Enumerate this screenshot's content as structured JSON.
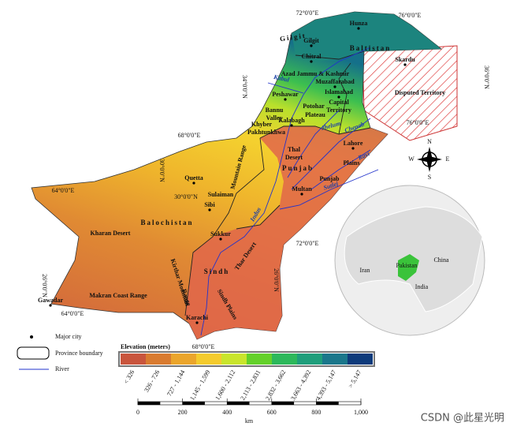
{
  "map": {
    "labels": [
      "Hunza",
      "Gilgit",
      "Gilgit",
      "Baltistan",
      "Chitral",
      "Skardu",
      "Azad Jammu & Kashmir",
      "Muzaffarabad",
      "Kabul",
      "Peshawar",
      "Islamabad",
      "Capital",
      "Territory",
      "Bannu",
      "Valley",
      "Potohar",
      "Plateau",
      "Kalabagh",
      "Khyber",
      "Pakhtunkhwa",
      "Jhelum",
      "Chenab",
      "Lahore",
      "Thal",
      "Desert",
      "Punjab",
      "Plains",
      "Ravi",
      "Punjab",
      "Sutlej",
      "Multan",
      "Quetta",
      "Sibi",
      "Sulaiman",
      "Mountain Range",
      "Balochistan",
      "Kharan Desert",
      "Sukkur",
      "Indus",
      "Thar Desert",
      "Sindh",
      "Kirthar Mountain",
      "Range",
      "Makran Coast Range",
      "Gawadar",
      "Karachi",
      "Sindh Plains",
      "Disputed Territory"
    ],
    "coordinates": [
      "72°0'0\"E",
      "76°0'0\"E",
      "36°0'0\"N",
      "34°0'0\"N",
      "76°0'0\"E",
      "68°0'0\"E",
      "30°0'0\"N",
      "64°0'0\"E",
      "30°0'0\"N",
      "72°0'0\"E",
      "26°0'0\"N",
      "26°0'0\"N",
      "64°0'0\"E",
      "68°0'0\"E"
    ],
    "compass": [
      "N",
      "S",
      "E",
      "W"
    ],
    "inset": [
      "China",
      "Iran",
      "Pakistan",
      "India"
    ]
  },
  "legend": {
    "items": [
      "Major city",
      "Province boundary",
      "River"
    ],
    "elevation_title": "Elevation (meters)",
    "classes": [
      {
        "label": "< 326",
        "color": "#c9553d"
      },
      {
        "label": "326 - 726",
        "color": "#d97b30"
      },
      {
        "label": "727 - 1,144",
        "color": "#eba52b"
      },
      {
        "label": "1,145 - 1,599",
        "color": "#f4cb2d"
      },
      {
        "label": "1,600 - 2,112",
        "color": "#c9e52c"
      },
      {
        "label": "2,113 - 2,831",
        "color": "#64d12a"
      },
      {
        "label": "2,832 - 3,662",
        "color": "#2db85b"
      },
      {
        "label": "3,663 - 4,392",
        "color": "#1f9e7b"
      },
      {
        "label": "4,393 - 5,147",
        "color": "#1b778b"
      },
      {
        "label": "> 5,147",
        "color": "#0e3b7b"
      }
    ]
  },
  "scale_bar": {
    "ticks": [
      "0",
      "200",
      "400",
      "600",
      "800",
      "1,000"
    ],
    "unit": "km"
  },
  "watermark": "CSDN @此星光明"
}
